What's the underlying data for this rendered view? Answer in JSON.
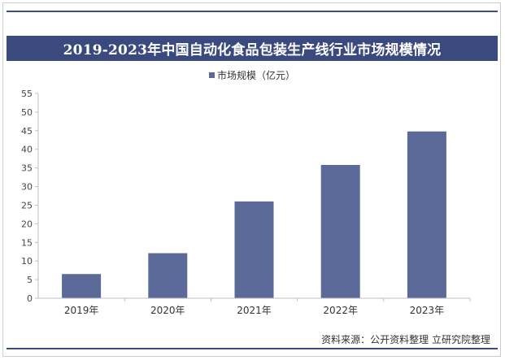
{
  "header": {
    "title": "2019-2023年中国自动化食品包装生产线行业市场规模情况"
  },
  "chart_data": {
    "type": "bar",
    "title": "2019-2023年中国自动化食品包装生产线行业市场规模情况",
    "categories": [
      "2019年",
      "2020年",
      "2021年",
      "2022年",
      "2023年"
    ],
    "series": [
      {
        "name": "市场规模（亿元）",
        "values": [
          6.5,
          12.1,
          26.0,
          35.8,
          44.8
        ]
      }
    ],
    "ylim": [
      0,
      55
    ],
    "yticks": [
      0,
      5,
      10,
      15,
      20,
      25,
      30,
      35,
      40,
      45,
      50,
      55
    ],
    "xlabel": "",
    "ylabel": "",
    "legend": "top-center",
    "grid": false,
    "colors": {
      "bar": "#5b6a99",
      "title_bg": "#3b4a7e",
      "axis": "#bfbfbf"
    }
  },
  "footer": {
    "source": "资料来源：公开资料整理 立研究院整理"
  }
}
